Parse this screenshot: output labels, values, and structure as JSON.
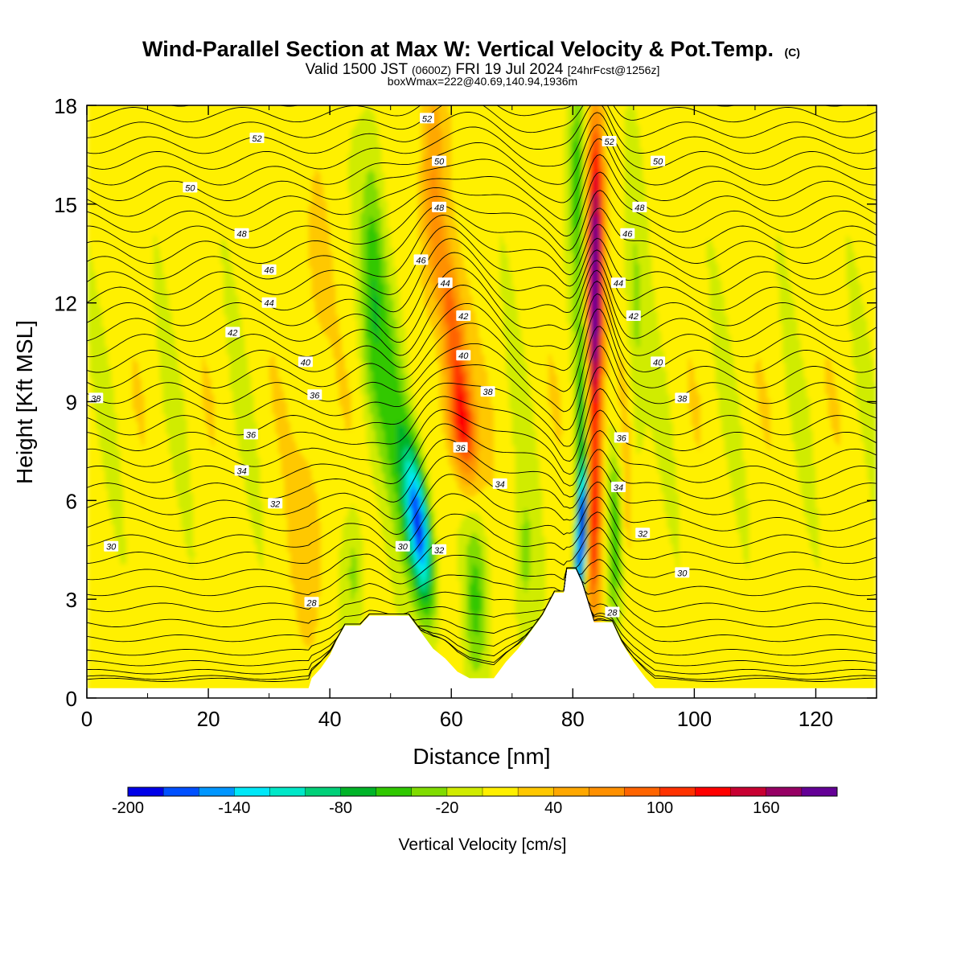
{
  "title": {
    "main": "Wind-Parallel Section at Max W: Vertical Velocity & Pot.Temp.",
    "copyright": "(C)",
    "valid_prefix": "Valid 1500 JST",
    "utc": "(0600Z)",
    "date": "FRI 19 Jul 2024",
    "forecast": "[24hrFcst@1256z]",
    "boxwmax": "boxWmax=222@40.69,140.94,1936m"
  },
  "chart_data": {
    "type": "heatmap",
    "xlabel": "Distance [nm]",
    "ylabel": "Height [Kft MSL]",
    "xlim": [
      0,
      130
    ],
    "ylim": [
      0,
      18
    ],
    "x_ticks": [
      "0",
      "20",
      "40",
      "60",
      "80",
      "100",
      "120"
    ],
    "y_ticks": [
      "0",
      "3",
      "6",
      "9",
      "12",
      "15",
      "18"
    ],
    "colorbar": {
      "label": "Vertical Velocity [cm/s]",
      "tick_labels": [
        "-200",
        "-140",
        "-80",
        "-20",
        "40",
        "100",
        "160"
      ],
      "tick_values": [
        -200,
        -140,
        -80,
        -20,
        40,
        100,
        160
      ],
      "range": [
        -200,
        200
      ],
      "colors": [
        "#0000e8",
        "#0050ff",
        "#0096ff",
        "#00e8f8",
        "#00e8c8",
        "#00d078",
        "#00b428",
        "#30c800",
        "#80dc00",
        "#d0ec00",
        "#fff000",
        "#ffc800",
        "#ffa800",
        "#ff9000",
        "#ff6400",
        "#ff3200",
        "#ff0000",
        "#c80032",
        "#960064",
        "#640096"
      ]
    },
    "terrain_kft": [
      [
        0,
        0.3
      ],
      [
        36.5,
        0.3
      ],
      [
        37,
        0.6
      ],
      [
        38.5,
        0.9
      ],
      [
        40,
        1.3
      ],
      [
        41,
        1.7
      ],
      [
        42.5,
        2.2
      ],
      [
        45,
        2.2
      ],
      [
        46.5,
        2.5
      ],
      [
        53,
        2.5
      ],
      [
        55,
        2.0
      ],
      [
        57,
        1.5
      ],
      [
        59,
        1.2
      ],
      [
        61,
        0.8
      ],
      [
        63,
        0.6
      ],
      [
        67,
        0.6
      ],
      [
        69,
        1.1
      ],
      [
        71,
        1.5
      ],
      [
        73,
        2.0
      ],
      [
        75,
        2.5
      ],
      [
        77,
        3.2
      ],
      [
        78.5,
        3.2
      ],
      [
        79,
        3.9
      ],
      [
        80.5,
        3.9
      ],
      [
        81.5,
        3.5
      ],
      [
        83.5,
        2.3
      ],
      [
        86.5,
        2.3
      ],
      [
        88,
        1.7
      ],
      [
        90,
        1.1
      ],
      [
        92,
        0.6
      ],
      [
        93.5,
        0.3
      ],
      [
        130,
        0.3
      ]
    ],
    "theta_labels": [
      {
        "x": 1.5,
        "y": 9.1,
        "text": "38"
      },
      {
        "x": 4,
        "y": 4.6,
        "text": "30"
      },
      {
        "x": 17,
        "y": 15.5,
        "text": "50"
      },
      {
        "x": 24,
        "y": 11.1,
        "text": "42"
      },
      {
        "x": 25.5,
        "y": 6.9,
        "text": "34"
      },
      {
        "x": 25.5,
        "y": 14.1,
        "text": "48"
      },
      {
        "x": 27,
        "y": 8.0,
        "text": "36"
      },
      {
        "x": 28,
        "y": 17.0,
        "text": "52"
      },
      {
        "x": 30,
        "y": 13.0,
        "text": "46"
      },
      {
        "x": 30,
        "y": 12.0,
        "text": "44"
      },
      {
        "x": 31,
        "y": 5.9,
        "text": "32"
      },
      {
        "x": 36,
        "y": 10.2,
        "text": "40"
      },
      {
        "x": 37.5,
        "y": 9.2,
        "text": "36"
      },
      {
        "x": 37,
        "y": 2.9,
        "text": "28"
      },
      {
        "x": 52,
        "y": 4.6,
        "text": "30"
      },
      {
        "x": 56,
        "y": 17.6,
        "text": "52"
      },
      {
        "x": 58,
        "y": 16.3,
        "text": "50"
      },
      {
        "x": 58,
        "y": 14.9,
        "text": "48"
      },
      {
        "x": 55,
        "y": 13.3,
        "text": "46"
      },
      {
        "x": 59,
        "y": 12.6,
        "text": "44"
      },
      {
        "x": 58,
        "y": 4.5,
        "text": "32"
      },
      {
        "x": 62,
        "y": 11.6,
        "text": "42"
      },
      {
        "x": 62,
        "y": 10.4,
        "text": "40"
      },
      {
        "x": 61.5,
        "y": 7.6,
        "text": "36"
      },
      {
        "x": 66,
        "y": 9.3,
        "text": "38"
      },
      {
        "x": 68,
        "y": 6.5,
        "text": "34"
      },
      {
        "x": 86,
        "y": 16.9,
        "text": "52"
      },
      {
        "x": 94,
        "y": 16.3,
        "text": "50"
      },
      {
        "x": 91,
        "y": 14.9,
        "text": "48"
      },
      {
        "x": 89,
        "y": 14.1,
        "text": "46"
      },
      {
        "x": 87.5,
        "y": 12.6,
        "text": "44"
      },
      {
        "x": 90,
        "y": 11.6,
        "text": "42"
      },
      {
        "x": 94,
        "y": 10.2,
        "text": "40"
      },
      {
        "x": 98,
        "y": 9.1,
        "text": "38"
      },
      {
        "x": 88,
        "y": 7.9,
        "text": "36"
      },
      {
        "x": 87.5,
        "y": 6.4,
        "text": "34"
      },
      {
        "x": 91.5,
        "y": 5.0,
        "text": "32"
      },
      {
        "x": 98,
        "y": 3.8,
        "text": "30"
      },
      {
        "x": 86.5,
        "y": 2.6,
        "text": "28"
      }
    ]
  }
}
